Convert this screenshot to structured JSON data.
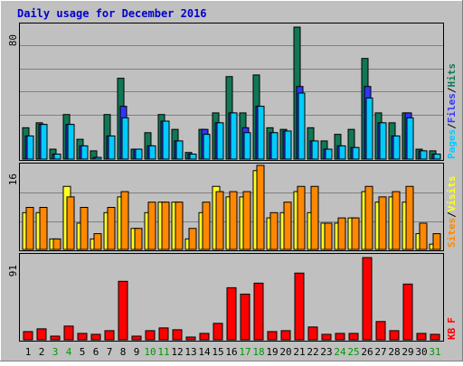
{
  "title": "Daily usage for December 2016",
  "colors": {
    "background": "#C0C0C0",
    "title": "#0000CC",
    "pages": "#00CCFF",
    "files": "#3333FF",
    "hits": "#117755",
    "sites": "#FF8800",
    "visits": "#FFFF22",
    "kbytes": "#FF0000",
    "weekday_label": "#000000",
    "weekend_label": "#009900"
  },
  "chart_data": [
    {
      "type": "bar",
      "title": "",
      "panel": "hits-files-pages",
      "ylabel_max": "80",
      "ymax": 80,
      "legend": [
        "Pages",
        "/",
        "Files",
        "/",
        "Hits"
      ],
      "categories": [
        "1",
        "2",
        "3",
        "4",
        "5",
        "6",
        "7",
        "8",
        "9",
        "10",
        "11",
        "12",
        "13",
        "14",
        "15",
        "16",
        "17",
        "18",
        "19",
        "20",
        "21",
        "22",
        "23",
        "24",
        "25",
        "26",
        "27",
        "28",
        "29",
        "30",
        "31"
      ],
      "series": [
        {
          "name": "Hits",
          "values": [
            19,
            22,
            6,
            27,
            12,
            5,
            27,
            49,
            6,
            16,
            27,
            18,
            4,
            18,
            28,
            50,
            28,
            51,
            19,
            18,
            80,
            19,
            11,
            15,
            18,
            61,
            28,
            22,
            28,
            6,
            5
          ]
        },
        {
          "name": "Files",
          "values": [
            14,
            21,
            3,
            21,
            8,
            1,
            14,
            32,
            6,
            8,
            23,
            11,
            3,
            18,
            22,
            28,
            19,
            32,
            16,
            17,
            44,
            11,
            6,
            8,
            7,
            44,
            22,
            14,
            28,
            5,
            3
          ]
        },
        {
          "name": "Pages",
          "values": [
            14,
            21,
            3,
            21,
            8,
            1,
            14,
            25,
            6,
            8,
            23,
            11,
            3,
            15,
            22,
            28,
            16,
            32,
            16,
            17,
            40,
            11,
            6,
            8,
            7,
            37,
            22,
            14,
            25,
            5,
            3
          ]
        }
      ]
    },
    {
      "type": "bar",
      "title": "",
      "panel": "visits-sites",
      "ylabel_max": "16",
      "ymax": 16,
      "legend": [
        "Sites",
        "/",
        "Visits"
      ],
      "categories": [
        "1",
        "2",
        "3",
        "4",
        "5",
        "6",
        "7",
        "8",
        "9",
        "10",
        "11",
        "12",
        "13",
        "14",
        "15",
        "16",
        "17",
        "18",
        "19",
        "20",
        "21",
        "22",
        "23",
        "24",
        "25",
        "26",
        "27",
        "28",
        "29",
        "30",
        "31"
      ],
      "series": [
        {
          "name": "Visits",
          "values": [
            7,
            7,
            2,
            12,
            5,
            2,
            7,
            10,
            4,
            7,
            9,
            9,
            2,
            7,
            12,
            10,
            10,
            15,
            6,
            7,
            11,
            7,
            5,
            5,
            6,
            11,
            9,
            10,
            9,
            3,
            1
          ]
        },
        {
          "name": "Sites",
          "values": [
            8,
            8,
            2,
            10,
            8,
            3,
            8,
            11,
            4,
            9,
            9,
            9,
            4,
            9,
            11,
            11,
            11,
            16,
            7,
            9,
            12,
            12,
            5,
            6,
            6,
            12,
            10,
            11,
            12,
            5,
            3
          ]
        }
      ]
    },
    {
      "type": "bar",
      "title": "",
      "panel": "kbytes",
      "ylabel_max": "91",
      "ymax": 91,
      "legend": [
        "KB",
        "F"
      ],
      "categories": [
        "1",
        "2",
        "3",
        "4",
        "5",
        "6",
        "7",
        "8",
        "9",
        "10",
        "11",
        "12",
        "13",
        "14",
        "15",
        "16",
        "17",
        "18",
        "19",
        "20",
        "21",
        "22",
        "23",
        "24",
        "25",
        "26",
        "27",
        "28",
        "29",
        "30",
        "31"
      ],
      "series": [
        {
          "name": "KBytes",
          "values": [
            9,
            12,
            4,
            15,
            7,
            6,
            10,
            64,
            4,
            10,
            13,
            11,
            3,
            7,
            18,
            57,
            50,
            62,
            9,
            10,
            73,
            14,
            6,
            7,
            7,
            90,
            20,
            10,
            61,
            7,
            6
          ]
        }
      ]
    }
  ],
  "x_labels": [
    {
      "text": "1",
      "weekend": false
    },
    {
      "text": "2",
      "weekend": false
    },
    {
      "text": "3",
      "weekend": true
    },
    {
      "text": "4",
      "weekend": true
    },
    {
      "text": "5",
      "weekend": false
    },
    {
      "text": "6",
      "weekend": false
    },
    {
      "text": "7",
      "weekend": false
    },
    {
      "text": "8",
      "weekend": false
    },
    {
      "text": "9",
      "weekend": false
    },
    {
      "text": "10",
      "weekend": true
    },
    {
      "text": "11",
      "weekend": true
    },
    {
      "text": "12",
      "weekend": false
    },
    {
      "text": "13",
      "weekend": false
    },
    {
      "text": "14",
      "weekend": false
    },
    {
      "text": "15",
      "weekend": false
    },
    {
      "text": "16",
      "weekend": false
    },
    {
      "text": "17",
      "weekend": true
    },
    {
      "text": "18",
      "weekend": true
    },
    {
      "text": "19",
      "weekend": false
    },
    {
      "text": "20",
      "weekend": false
    },
    {
      "text": "21",
      "weekend": false
    },
    {
      "text": "22",
      "weekend": false
    },
    {
      "text": "23",
      "weekend": false
    },
    {
      "text": "24",
      "weekend": true
    },
    {
      "text": "25",
      "weekend": true
    },
    {
      "text": "26",
      "weekend": false
    },
    {
      "text": "27",
      "weekend": false
    },
    {
      "text": "28",
      "weekend": false
    },
    {
      "text": "29",
      "weekend": false
    },
    {
      "text": "30",
      "weekend": false
    },
    {
      "text": "31",
      "weekend": true
    }
  ]
}
